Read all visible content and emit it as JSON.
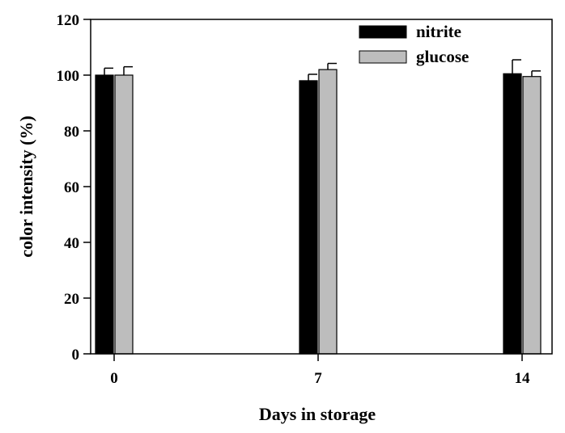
{
  "chart_data": {
    "type": "bar",
    "xlabel": "Days in storage",
    "ylabel": "color intensity (%)",
    "categories": [
      "0",
      "7",
      "14"
    ],
    "ylim": [
      0,
      120
    ],
    "yticks": [
      0,
      20,
      40,
      60,
      80,
      100,
      120
    ],
    "grid": false,
    "legend_position": "top-right",
    "series": [
      {
        "name": "nitrite",
        "color": "#000000",
        "values": [
          100,
          98,
          100.5
        ],
        "errors": [
          2.5,
          2.3,
          5
        ]
      },
      {
        "name": "glucose",
        "color": "#bdbdbd",
        "values": [
          100,
          102,
          99.5
        ],
        "errors": [
          3,
          2.2,
          2
        ]
      }
    ]
  }
}
